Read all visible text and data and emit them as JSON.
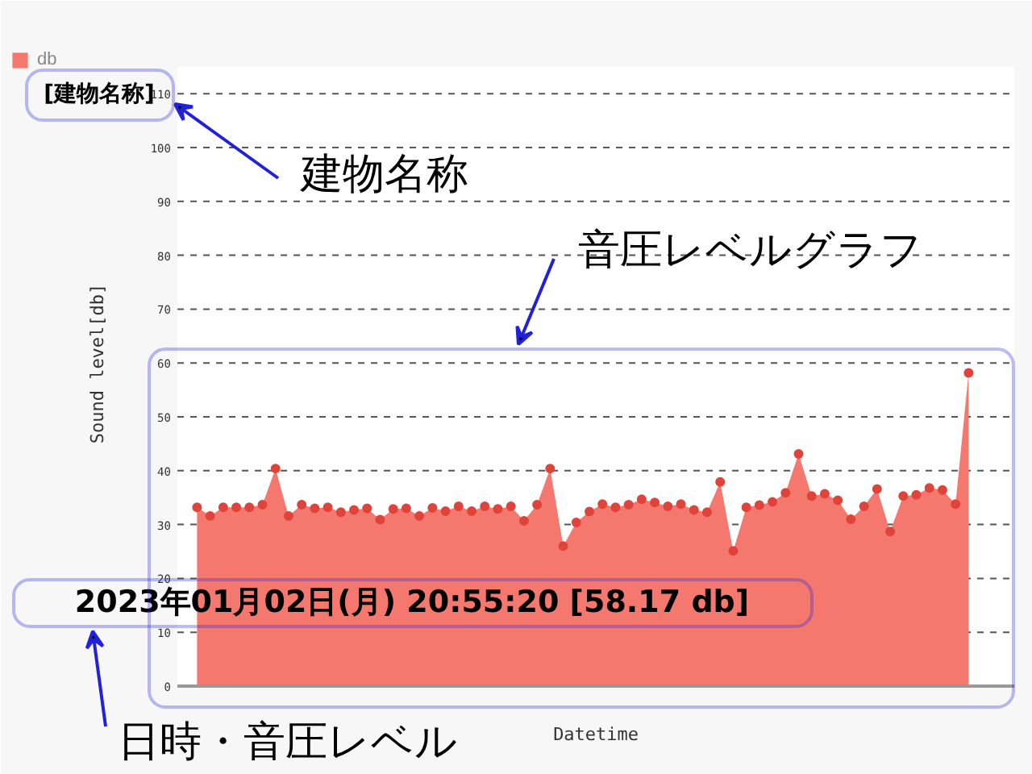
{
  "chart_data": {
    "type": "area",
    "title": "[建物名称]",
    "xlabel": "Datetime",
    "ylabel": "Sound level[db]",
    "categories": [
      null,
      null,
      null,
      null,
      null,
      null,
      null,
      null,
      null,
      null,
      null,
      null,
      null,
      null,
      null,
      null,
      null,
      null,
      null,
      null,
      null,
      null,
      null,
      null,
      null,
      null,
      null,
      null,
      null,
      null,
      null,
      null,
      null,
      null,
      null,
      null,
      null,
      null,
      null,
      null,
      null,
      null,
      null,
      null,
      null,
      null,
      null,
      null,
      null,
      null,
      null,
      null,
      null,
      null,
      null,
      null,
      null,
      null,
      null,
      null
    ],
    "series": [
      {
        "name": "db",
        "color": "#f4786e",
        "values": [
          33.2,
          31.6,
          33.2,
          33.2,
          33.2,
          33.7,
          40.4,
          31.6,
          33.7,
          33.0,
          33.2,
          32.3,
          32.7,
          33.0,
          30.9,
          32.9,
          33.0,
          31.6,
          33.1,
          32.5,
          33.4,
          32.5,
          33.4,
          32.9,
          33.4,
          30.7,
          33.7,
          40.4,
          26.0,
          30.4,
          32.4,
          33.8,
          33.2,
          33.7,
          34.7,
          34.1,
          33.4,
          33.8,
          32.7,
          32.3,
          37.9,
          25.1,
          33.2,
          33.6,
          34.2,
          35.9,
          43.1,
          35.3,
          35.7,
          34.5,
          31.0,
          33.4,
          36.6,
          28.7,
          35.3,
          35.5,
          36.8,
          36.4,
          33.8,
          58.17
        ]
      }
    ],
    "ylim": [
      0,
      110
    ],
    "yticks": [
      0,
      10,
      20,
      30,
      40,
      50,
      60,
      70,
      80,
      90,
      100,
      110
    ],
    "grid": "y",
    "legend": "top left",
    "marker": "circle",
    "tick_labels": "y",
    "annotations": [
      "2023年01月02日(月) 20:55:20 [58.17 db]",
      "建物名称",
      "音圧レベルグラフ",
      "日時・音圧レベル"
    ]
  }
}
